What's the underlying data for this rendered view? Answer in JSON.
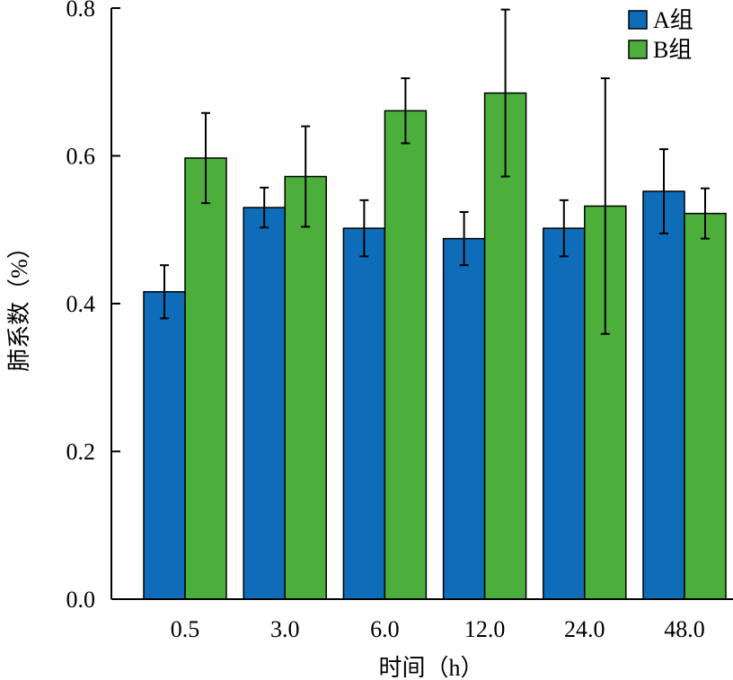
{
  "chart_data": {
    "type": "bar",
    "categories": [
      "0.5",
      "3.0",
      "6.0",
      "12.0",
      "24.0",
      "48.0"
    ],
    "series": [
      {
        "name": "A组",
        "color": "#0f6cb8",
        "values": [
          0.416,
          0.53,
          0.502,
          0.488,
          0.502,
          0.552
        ],
        "errors": [
          0.036,
          0.027,
          0.038,
          0.036,
          0.038,
          0.057
        ]
      },
      {
        "name": "B组",
        "color": "#4caf3c",
        "values": [
          0.597,
          0.572,
          0.661,
          0.685,
          0.532,
          0.522
        ],
        "errors": [
          0.061,
          0.068,
          0.044,
          0.113,
          0.173,
          0.034
        ]
      }
    ],
    "xlabel": "时间（h）",
    "ylabel": "肺系数（%）",
    "ylim": [
      0,
      0.8
    ],
    "yticks": [
      "0.0",
      "0.2",
      "0.4",
      "0.6",
      "0.8"
    ],
    "grid": false,
    "legend_position": "top-right"
  }
}
